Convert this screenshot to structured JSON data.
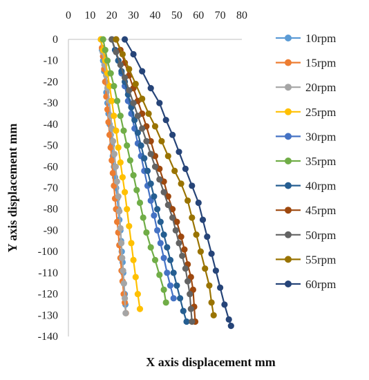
{
  "chart_data": {
    "type": "scatter",
    "title": "",
    "xlabel": "X axis  displacement mm",
    "ylabel": "Y axis displacement  mm",
    "xlim": [
      0,
      80
    ],
    "ylim": [
      -140,
      0
    ],
    "x_ticks": [
      "0",
      "10",
      "20",
      "30",
      "40",
      "50",
      "60",
      "70",
      "80"
    ],
    "y_ticks": [
      "0",
      "-10",
      "-20",
      "-30",
      "-40",
      "-50",
      "-60",
      "-70",
      "-80",
      "-90",
      "-100",
      "-110",
      "-120",
      "-130",
      "-140"
    ],
    "x_axis_position": "top",
    "grid": false,
    "legend_position": "right",
    "series": [
      {
        "name": "10rpm",
        "color": "#5B9BD5",
        "points": [
          [
            15,
            0
          ],
          [
            15.5,
            -5
          ],
          [
            16,
            -10
          ],
          [
            16.5,
            -15
          ],
          [
            17,
            -20
          ],
          [
            17.5,
            -25
          ],
          [
            18,
            -30
          ],
          [
            18.5,
            -35
          ],
          [
            19,
            -40
          ],
          [
            19.5,
            -45
          ],
          [
            20,
            -50
          ],
          [
            20.5,
            -55
          ],
          [
            21,
            -60
          ],
          [
            21.5,
            -65
          ],
          [
            22,
            -70
          ],
          [
            22.5,
            -75
          ],
          [
            23,
            -80
          ],
          [
            23.5,
            -85
          ],
          [
            24,
            -90
          ],
          [
            24.3,
            -95
          ],
          [
            24.6,
            -100
          ],
          [
            25,
            -105
          ],
          [
            25.3,
            -110
          ],
          [
            25.6,
            -115
          ],
          [
            26,
            -120
          ],
          [
            26.3,
            -125
          ],
          [
            26.5,
            -129
          ]
        ]
      },
      {
        "name": "15rpm",
        "color": "#ED7D31",
        "points": [
          [
            15,
            0
          ],
          [
            15.5,
            -4
          ],
          [
            16,
            -8
          ],
          [
            16.5,
            -14
          ],
          [
            17,
            -20
          ],
          [
            17.5,
            -27
          ],
          [
            18,
            -33
          ],
          [
            18.5,
            -39
          ],
          [
            19,
            -45
          ],
          [
            19.5,
            -51
          ],
          [
            20,
            -57
          ],
          [
            20.5,
            -63
          ],
          [
            21,
            -69
          ],
          [
            21.5,
            -75
          ],
          [
            22,
            -80
          ],
          [
            22.5,
            -86
          ],
          [
            23,
            -91
          ],
          [
            23.5,
            -97
          ],
          [
            24,
            -103
          ],
          [
            24.5,
            -109
          ],
          [
            25,
            -114
          ],
          [
            25.5,
            -120
          ],
          [
            26,
            -124
          ],
          [
            26.5,
            -129
          ]
        ]
      },
      {
        "name": "20rpm",
        "color": "#A5A5A5",
        "points": [
          [
            15,
            0
          ],
          [
            15.8,
            -6
          ],
          [
            16.6,
            -12
          ],
          [
            17.4,
            -17
          ],
          [
            18,
            -23
          ],
          [
            18.8,
            -29
          ],
          [
            19.5,
            -36
          ],
          [
            20,
            -42
          ],
          [
            20.6,
            -48
          ],
          [
            21.2,
            -54
          ],
          [
            21.8,
            -60
          ],
          [
            22.4,
            -67
          ],
          [
            23,
            -74
          ],
          [
            23.5,
            -81
          ],
          [
            24,
            -89
          ],
          [
            24.4,
            -96
          ],
          [
            24.8,
            -103
          ],
          [
            25.2,
            -109
          ],
          [
            25.6,
            -115
          ],
          [
            26,
            -122
          ],
          [
            26.4,
            -129
          ]
        ]
      },
      {
        "name": "25rpm",
        "color": "#FFC000",
        "points": [
          [
            15,
            0
          ],
          [
            16,
            -5
          ],
          [
            17,
            -10
          ],
          [
            18,
            -16
          ],
          [
            19,
            -22
          ],
          [
            20,
            -29
          ],
          [
            21,
            -36
          ],
          [
            22,
            -43
          ],
          [
            23,
            -51
          ],
          [
            24,
            -58
          ],
          [
            25,
            -65
          ],
          [
            26,
            -72
          ],
          [
            27,
            -80
          ],
          [
            28,
            -88
          ],
          [
            29,
            -96
          ],
          [
            30,
            -104
          ],
          [
            31,
            -112
          ],
          [
            32,
            -120
          ],
          [
            33,
            -127
          ]
        ]
      },
      {
        "name": "30rpm",
        "color": "#4472C4",
        "points": [
          [
            20,
            0
          ],
          [
            21.5,
            -5
          ],
          [
            23,
            -10
          ],
          [
            24.5,
            -16
          ],
          [
            26,
            -22
          ],
          [
            27.5,
            -29
          ],
          [
            29,
            -35
          ],
          [
            30.5,
            -42
          ],
          [
            32,
            -49
          ],
          [
            33.5,
            -55
          ],
          [
            35,
            -62
          ],
          [
            36.5,
            -69
          ],
          [
            38,
            -76
          ],
          [
            39.5,
            -83
          ],
          [
            41,
            -90
          ],
          [
            42.5,
            -96
          ],
          [
            44,
            -103
          ],
          [
            45.5,
            -110
          ],
          [
            47,
            -116
          ],
          [
            48.5,
            -122
          ]
        ]
      },
      {
        "name": "35rpm",
        "color": "#70AD47",
        "points": [
          [
            16,
            0
          ],
          [
            17,
            -5
          ],
          [
            18,
            -10
          ],
          [
            19.5,
            -16
          ],
          [
            21,
            -22
          ],
          [
            22.5,
            -29
          ],
          [
            24,
            -36
          ],
          [
            25.5,
            -43
          ],
          [
            27,
            -50
          ],
          [
            28.5,
            -57
          ],
          [
            30,
            -64
          ],
          [
            31.5,
            -71
          ],
          [
            33,
            -77
          ],
          [
            34.5,
            -84
          ],
          [
            36,
            -91
          ],
          [
            38,
            -98
          ],
          [
            40,
            -104
          ],
          [
            42,
            -111
          ],
          [
            44,
            -118
          ],
          [
            45,
            -124
          ]
        ]
      },
      {
        "name": "40rpm",
        "color": "#255E91",
        "points": [
          [
            20,
            0
          ],
          [
            21.5,
            -5
          ],
          [
            23,
            -10
          ],
          [
            24.5,
            -15
          ],
          [
            26,
            -20
          ],
          [
            27.5,
            -26
          ],
          [
            29,
            -32
          ],
          [
            30.5,
            -38
          ],
          [
            32,
            -44
          ],
          [
            33.5,
            -50
          ],
          [
            35,
            -56
          ],
          [
            36.5,
            -62
          ],
          [
            38,
            -68
          ],
          [
            39.5,
            -74
          ],
          [
            41,
            -80
          ],
          [
            42.5,
            -86
          ],
          [
            44,
            -92
          ],
          [
            45.5,
            -98
          ],
          [
            47,
            -104
          ],
          [
            48.5,
            -110
          ],
          [
            50,
            -116
          ],
          [
            51.5,
            -122
          ],
          [
            53,
            -128
          ],
          [
            54.5,
            -133
          ]
        ]
      },
      {
        "name": "45rpm",
        "color": "#9E480E",
        "points": [
          [
            22,
            0
          ],
          [
            24,
            -5
          ],
          [
            26,
            -11
          ],
          [
            28,
            -17
          ],
          [
            30,
            -23
          ],
          [
            32,
            -29
          ],
          [
            34,
            -35
          ],
          [
            36,
            -41
          ],
          [
            38,
            -48
          ],
          [
            40,
            -55
          ],
          [
            42,
            -61
          ],
          [
            44,
            -67
          ],
          [
            46,
            -74
          ],
          [
            48,
            -80
          ],
          [
            50,
            -86
          ],
          [
            52,
            -93
          ],
          [
            53.5,
            -99
          ],
          [
            55,
            -106
          ],
          [
            56.5,
            -112
          ],
          [
            57.5,
            -118
          ],
          [
            58,
            -126
          ],
          [
            58.5,
            -133
          ]
        ]
      },
      {
        "name": "50rpm",
        "color": "#636363",
        "points": [
          [
            20,
            0
          ],
          [
            22,
            -6
          ],
          [
            24,
            -12
          ],
          [
            26,
            -18
          ],
          [
            28,
            -24
          ],
          [
            30,
            -30
          ],
          [
            32,
            -36
          ],
          [
            34,
            -42
          ],
          [
            36,
            -48
          ],
          [
            38,
            -54
          ],
          [
            40,
            -60
          ],
          [
            42,
            -66
          ],
          [
            44,
            -72
          ],
          [
            46,
            -78
          ],
          [
            48,
            -84
          ],
          [
            49.5,
            -90
          ],
          [
            51,
            -96
          ],
          [
            52.5,
            -102
          ],
          [
            54,
            -108
          ],
          [
            55,
            -114
          ],
          [
            56,
            -120
          ],
          [
            56.5,
            -127
          ],
          [
            57,
            -133
          ]
        ]
      },
      {
        "name": "55rpm",
        "color": "#997300",
        "points": [
          [
            22,
            0
          ],
          [
            25,
            -7
          ],
          [
            28,
            -14
          ],
          [
            31,
            -21
          ],
          [
            34,
            -28
          ],
          [
            37,
            -35
          ],
          [
            40,
            -41
          ],
          [
            43,
            -48
          ],
          [
            46,
            -55
          ],
          [
            49,
            -62
          ],
          [
            52,
            -68
          ],
          [
            55,
            -76
          ],
          [
            57,
            -84
          ],
          [
            59,
            -92
          ],
          [
            61,
            -100
          ],
          [
            63,
            -108
          ],
          [
            65,
            -116
          ],
          [
            66,
            -124
          ],
          [
            67,
            -130
          ]
        ]
      },
      {
        "name": "60rpm",
        "color": "#264478",
        "points": [
          [
            26,
            0
          ],
          [
            30,
            -7
          ],
          [
            34,
            -15
          ],
          [
            38,
            -23
          ],
          [
            42,
            -30
          ],
          [
            45,
            -38
          ],
          [
            48,
            -45
          ],
          [
            51,
            -53
          ],
          [
            54,
            -61
          ],
          [
            57,
            -69
          ],
          [
            60,
            -77
          ],
          [
            62,
            -85
          ],
          [
            64,
            -93
          ],
          [
            66,
            -101
          ],
          [
            68,
            -109
          ],
          [
            70,
            -117
          ],
          [
            72,
            -125
          ],
          [
            74,
            -132
          ],
          [
            75,
            -135
          ]
        ]
      }
    ]
  }
}
